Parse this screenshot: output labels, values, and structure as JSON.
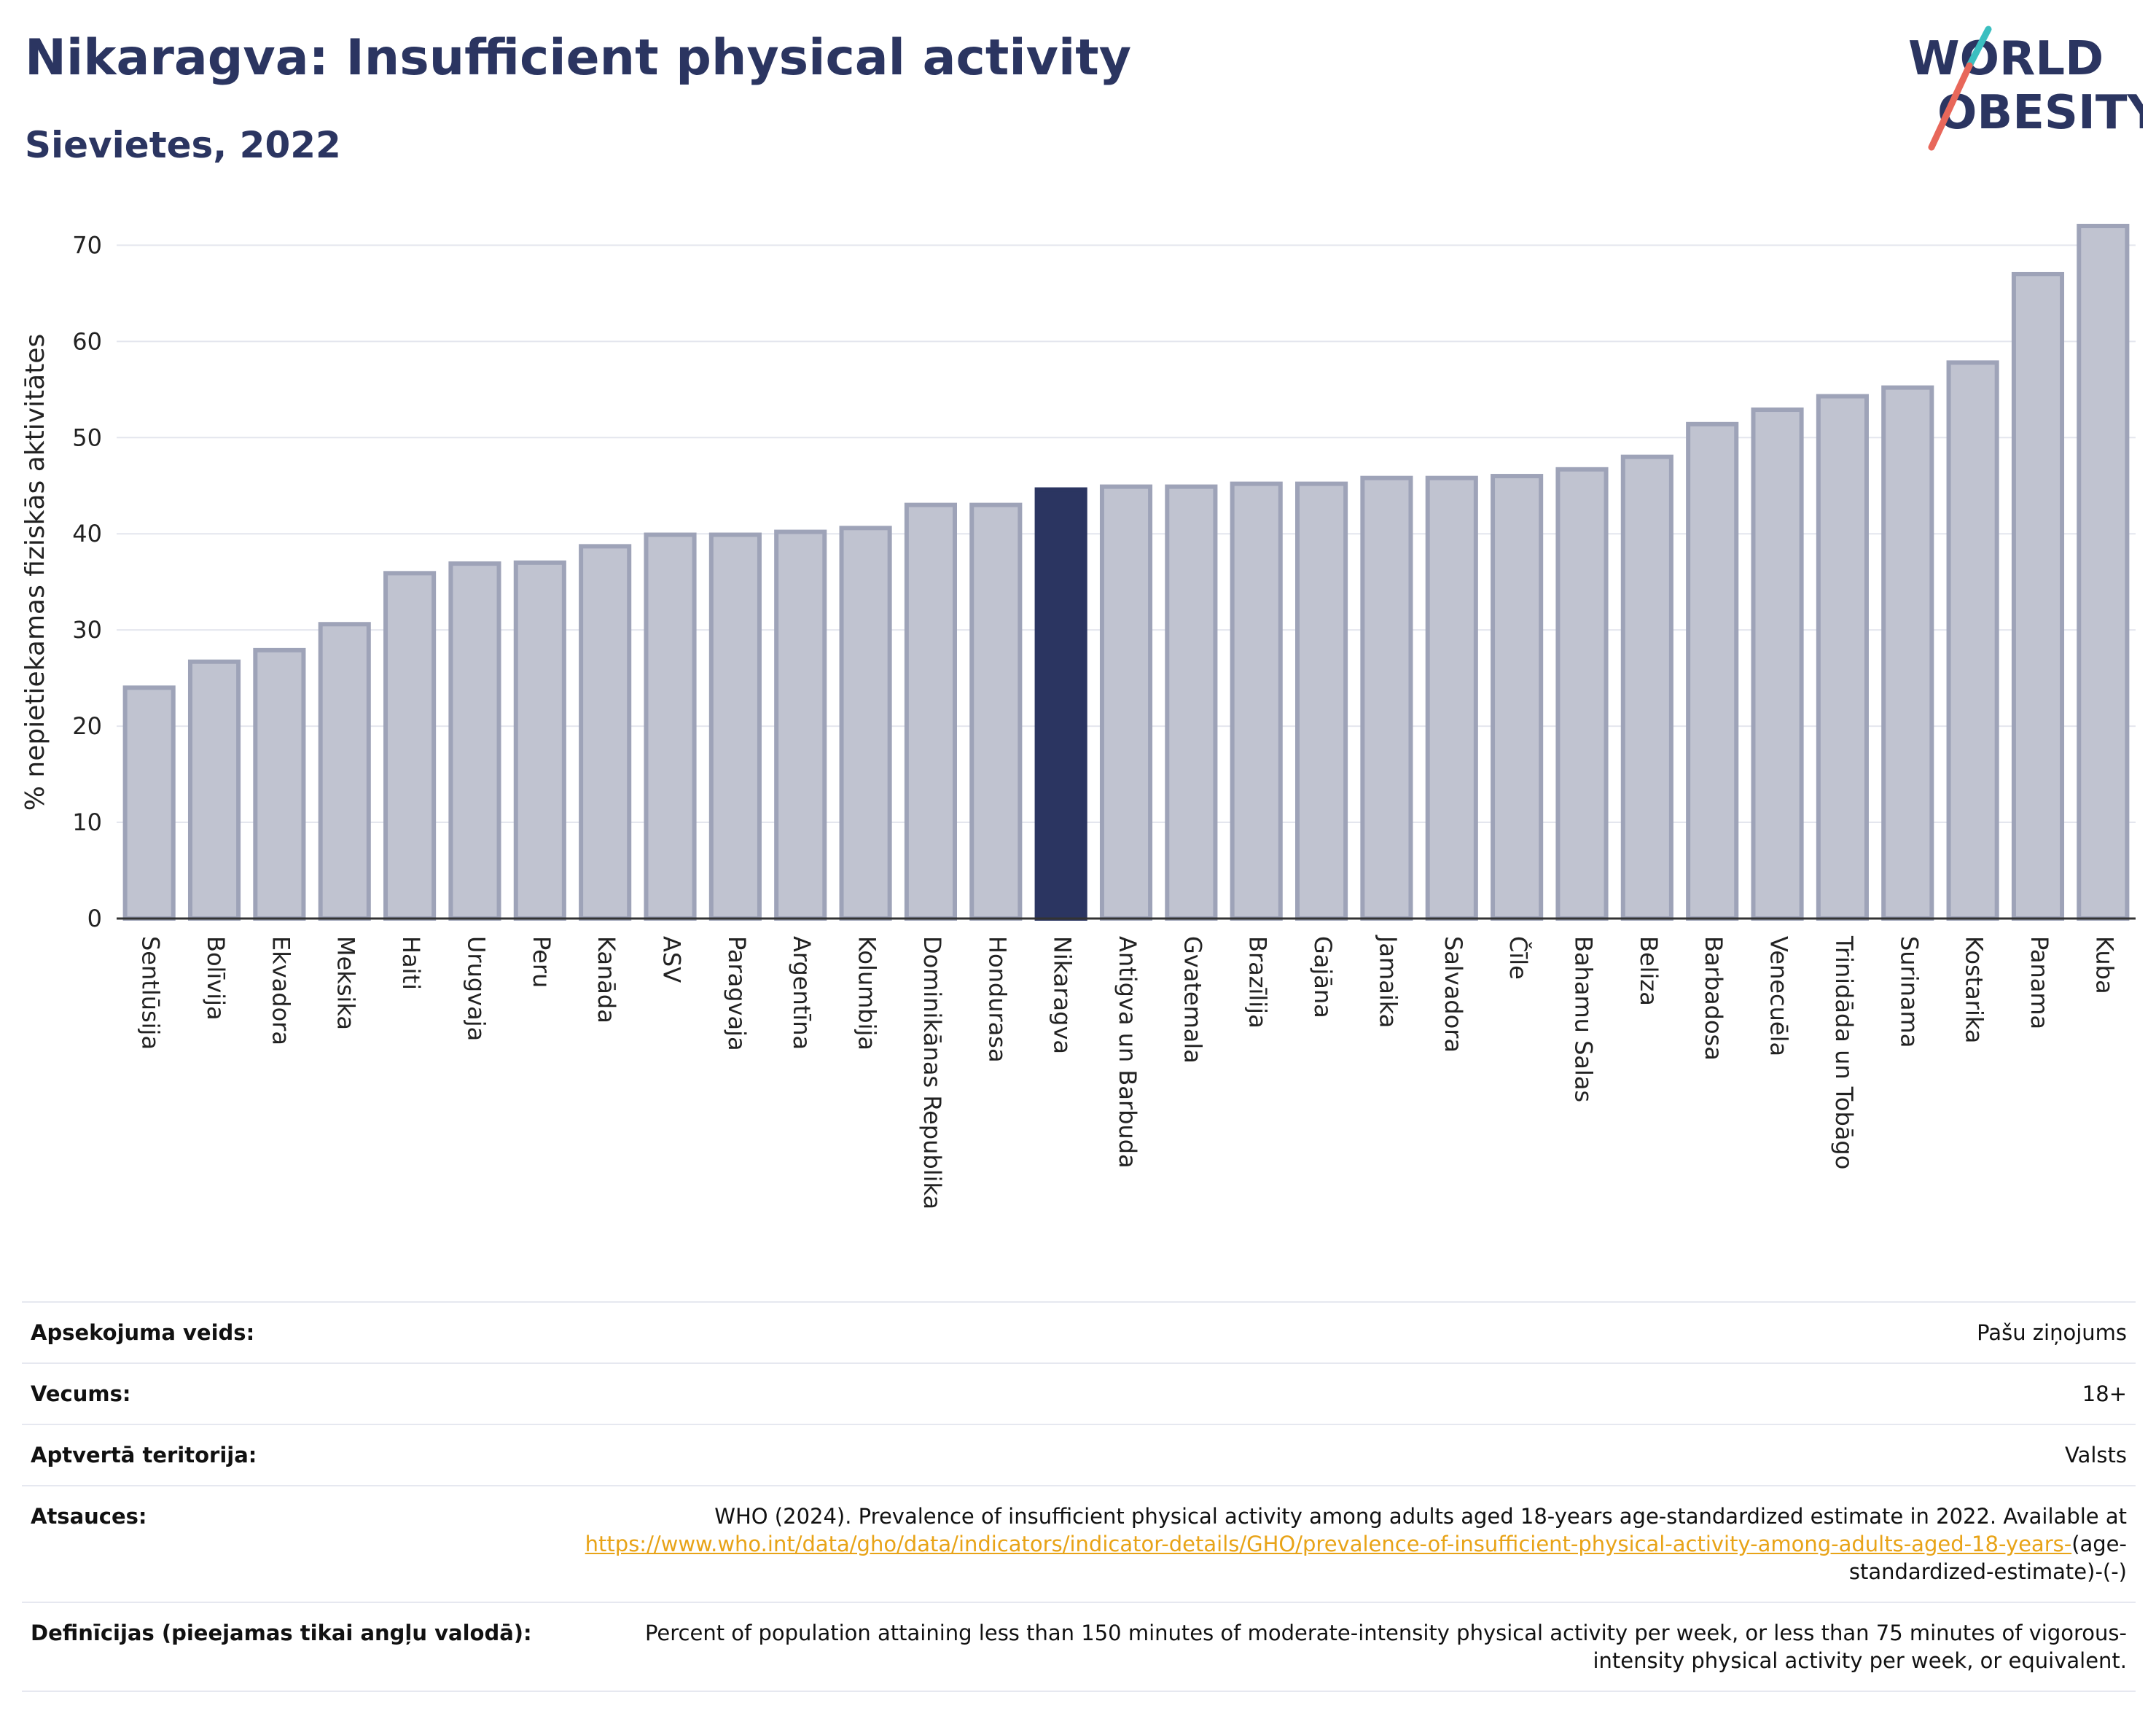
{
  "header": {
    "title": "Nikaragva: Insufficient physical activity",
    "subtitle": "Sievietes, 2022",
    "logo_line1": "WORLD",
    "logo_line2": "OBESITY"
  },
  "colors": {
    "highlight": "#2b3561",
    "bar": "#c0c3d0",
    "bar_border": "#9ea3b8",
    "title": "#2b3561",
    "link": "#e8a317",
    "logo_teal": "#3bbfc0",
    "logo_coral": "#e8675a"
  },
  "chart_data": {
    "type": "bar",
    "ylabel": "% nepietiekamas fiziskās aktivitātes",
    "ylim": [
      0,
      72
    ],
    "yticks": [
      0,
      10,
      20,
      30,
      40,
      50,
      60,
      70
    ],
    "grid": true,
    "highlight": "Nikaragva",
    "categories": [
      "Sentlūsija",
      "Bolīvija",
      "Ekvadora",
      "Meksika",
      "Haiti",
      "Urugvaja",
      "Peru",
      "Kanāda",
      "ASV",
      "Paragvaja",
      "Argentīna",
      "Kolumbija",
      "Dominikānas Republika",
      "Hondurasa",
      "Nikaragva",
      "Antigva un Barbuda",
      "Gvatemala",
      "Brazīlija",
      "Gajāna",
      "Jamaika",
      "Salvadora",
      "Čīle",
      "Bahamu Salas",
      "Beliza",
      "Barbadosa",
      "Venecuēla",
      "Trinidāda un Tobāgo",
      "Surinama",
      "Kostarika",
      "Panama",
      "Kuba"
    ],
    "values": [
      24.0,
      26.7,
      27.9,
      30.6,
      35.9,
      36.9,
      37.0,
      38.7,
      39.9,
      39.9,
      40.2,
      40.6,
      43.0,
      43.0,
      44.6,
      44.9,
      44.9,
      45.2,
      45.2,
      45.8,
      45.8,
      46.0,
      46.7,
      48.0,
      51.4,
      52.9,
      54.3,
      55.2,
      57.8,
      67.0,
      72.0
    ]
  },
  "metadata": [
    {
      "label": "Apsekojuma veids:",
      "value": "Pašu ziņojums"
    },
    {
      "label": "Vecums:",
      "value": "18+"
    },
    {
      "label": "Aptvertā teritorija:",
      "value": "Valsts"
    },
    {
      "label": "Atsauces:",
      "value": "WHO (2024). Prevalence of insufficient physical activity among adults aged 18-years age-standardized estimate in 2022. Available at ",
      "link": "https://www.who.int/data/gho/data/indicators/indicator-details/GHO/prevalence-of-insufficient-physical-activity-among-adults-aged-18-years-",
      "suffix": "(age-standardized-estimate)-(-)"
    },
    {
      "label": "Definīcijas (pieejamas tikai angļu valodā):",
      "value": "Percent of population attaining less than 150 minutes of moderate-intensity physical activity per week, or less than 75 minutes of vigorous-intensity physical activity per week, or equivalent."
    }
  ]
}
